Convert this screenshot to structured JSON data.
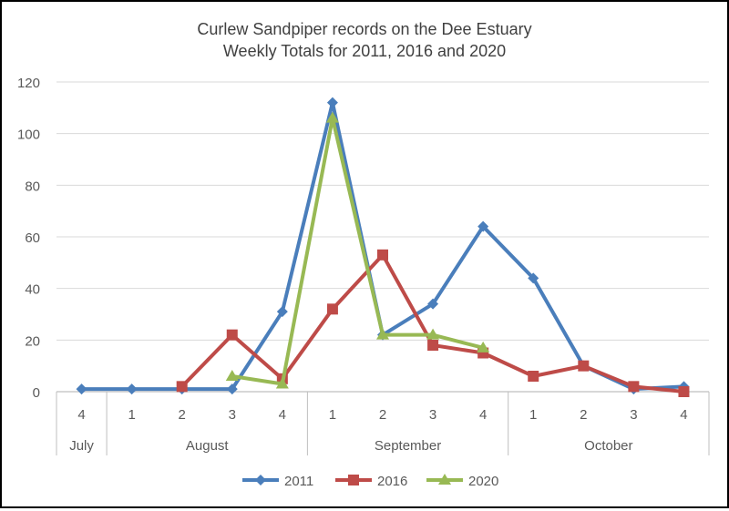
{
  "chart_data": {
    "type": "line",
    "title": "Curlew Sandpiper records on the Dee Estuary",
    "subtitle": "Weekly Totals for 2011, 2016 and 2020",
    "xlabel": "",
    "ylabel": "",
    "ylim": [
      0,
      120
    ],
    "yticks": [
      "0",
      "20",
      "40",
      "60",
      "80",
      "100",
      "120"
    ],
    "grid": true,
    "legend_position": "bottom",
    "x_week_labels": [
      "4",
      "1",
      "2",
      "3",
      "4",
      "1",
      "2",
      "3",
      "4",
      "1",
      "2",
      "3",
      "4"
    ],
    "x_month_groups": [
      {
        "label": "July",
        "weeks": 1
      },
      {
        "label": "August",
        "weeks": 4
      },
      {
        "label": "September",
        "weeks": 4
      },
      {
        "label": "October",
        "weeks": 4
      }
    ],
    "series": [
      {
        "name": "2011",
        "color": "#4a7ebb",
        "marker": "diamond",
        "values": [
          1,
          1,
          1,
          1,
          31,
          112,
          22,
          34,
          64,
          44,
          10,
          1,
          2
        ]
      },
      {
        "name": "2016",
        "color": "#be4b48",
        "marker": "square",
        "values": [
          null,
          null,
          2,
          22,
          5,
          32,
          53,
          18,
          15,
          6,
          10,
          2,
          0
        ]
      },
      {
        "name": "2020",
        "color": "#98b954",
        "marker": "triangle",
        "values": [
          null,
          null,
          null,
          6,
          3,
          106,
          22,
          22,
          17,
          null,
          null,
          null,
          null
        ]
      }
    ]
  }
}
